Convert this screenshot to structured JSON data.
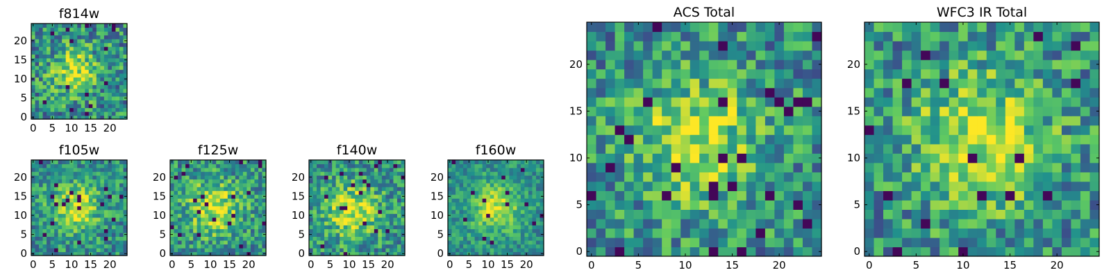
{
  "chart_data": [
    {
      "type": "heatmap",
      "title": "f814w",
      "xticks": [
        "0",
        "5",
        "10",
        "15",
        "20"
      ],
      "yticks": [
        "0",
        "5",
        "10",
        "15",
        "20"
      ],
      "xlim": [
        -0.5,
        24.5
      ],
      "ylim": [
        -0.5,
        24.5
      ],
      "grid": false,
      "center": [
        11,
        12
      ],
      "spread": 4.0,
      "noise": 0.3,
      "seed": 11
    },
    {
      "type": "heatmap",
      "title": "f105w",
      "xticks": [
        "0",
        "5",
        "10",
        "15",
        "20"
      ],
      "yticks": [
        "0",
        "5",
        "10",
        "15",
        "20"
      ],
      "xlim": [
        -0.5,
        24.5
      ],
      "ylim": [
        -0.5,
        24.5
      ],
      "grid": false,
      "center": [
        11,
        12
      ],
      "spread": 4.5,
      "noise": 0.24,
      "seed": 23
    },
    {
      "type": "heatmap",
      "title": "f125w",
      "xticks": [
        "0",
        "5",
        "10",
        "15",
        "20"
      ],
      "yticks": [
        "0",
        "5",
        "10",
        "15",
        "20"
      ],
      "xlim": [
        -0.5,
        24.5
      ],
      "ylim": [
        -0.5,
        24.5
      ],
      "grid": false,
      "center": [
        11,
        12
      ],
      "spread": 5.0,
      "noise": 0.26,
      "seed": 37
    },
    {
      "type": "heatmap",
      "title": "f140w",
      "xticks": [
        "0",
        "5",
        "10",
        "15",
        "20"
      ],
      "yticks": [
        "0",
        "5",
        "10",
        "15",
        "20"
      ],
      "xlim": [
        -0.5,
        24.5
      ],
      "ylim": [
        -0.5,
        24.5
      ],
      "grid": false,
      "center": [
        11,
        11
      ],
      "spread": 5.0,
      "noise": 0.26,
      "seed": 41
    },
    {
      "type": "heatmap",
      "title": "f160w",
      "xticks": [
        "0",
        "5",
        "10",
        "15",
        "20"
      ],
      "yticks": [
        "0",
        "5",
        "10",
        "15",
        "20"
      ],
      "xlim": [
        -0.5,
        24.5
      ],
      "ylim": [
        -0.5,
        24.5
      ],
      "grid": false,
      "center": [
        12,
        12
      ],
      "spread": 4.5,
      "noise": 0.18,
      "seed": 53
    },
    {
      "type": "heatmap",
      "title": "ACS Total",
      "xticks": [
        "0",
        "5",
        "10",
        "15",
        "20"
      ],
      "yticks": [
        "0",
        "5",
        "10",
        "15",
        "20"
      ],
      "xlim": [
        -0.5,
        24.5
      ],
      "ylim": [
        -0.5,
        24.5
      ],
      "grid": false,
      "center": [
        11,
        12
      ],
      "spread": 4.5,
      "noise": 0.28,
      "seed": 67
    },
    {
      "type": "heatmap",
      "title": "WFC3 IR Total",
      "xticks": [
        "0",
        "5",
        "10",
        "15",
        "20"
      ],
      "yticks": [
        "0",
        "5",
        "10",
        "15",
        "20"
      ],
      "xlim": [
        -0.5,
        24.5
      ],
      "ylim": [
        -0.5,
        24.5
      ],
      "grid": false,
      "center": [
        12,
        12
      ],
      "spread": 5.0,
      "noise": 0.28,
      "seed": 79
    }
  ]
}
